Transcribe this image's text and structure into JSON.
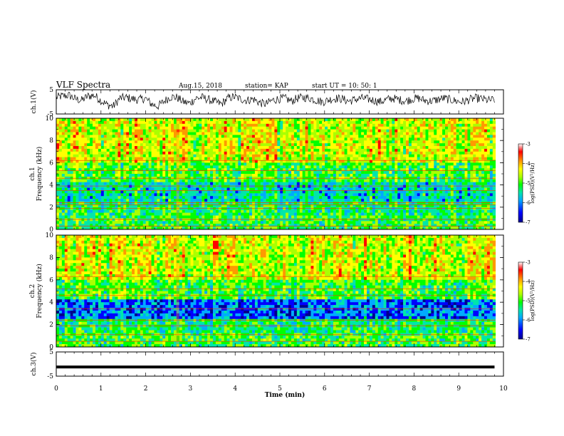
{
  "header": {
    "title": "VLF Spectra",
    "date": "Aug.15, 2018",
    "station": "station= KAP",
    "start": "start  UT  =    10: 50: 1"
  },
  "chart_data": [
    {
      "id": "ch1-waveform",
      "type": "line",
      "ylabel": "ch.1(V)",
      "ylim": [
        -5,
        5
      ],
      "y_ticks": [
        "5",
        "-5"
      ],
      "xlim": [
        0,
        10
      ],
      "series": [
        {
          "values": [
            0.6,
            0.8,
            0.9,
            0.4,
            0.2,
            0.8,
            0.9,
            0.2,
            -0.4,
            -0.6,
            0.5,
            0.6,
            0.4,
            0.3,
            0.5,
            -0.3,
            -0.6,
            0.1,
            0.7,
            0.6,
            0.0,
            -0.2,
            0.5,
            0.6,
            0.3,
            0.0,
            -0.3,
            0.5,
            0.7,
            0.4,
            0.2,
            0.4,
            -0.1,
            -0.3,
            0.2,
            0.4,
            0.5,
            0.1,
            0.5,
            0.6,
            0.5,
            0.2,
            0.0,
            0.3,
            0.5,
            0.4,
            0.1,
            0.3,
            0.5,
            0.4,
            0.2,
            0.0,
            0.3,
            0.5,
            0.3,
            0.1,
            0.4,
            0.5,
            0.2,
            0.1,
            0.3,
            0.5,
            0.3,
            0.1,
            0.0,
            0.3,
            0.5,
            0.4,
            0.2,
            0.3
          ]
        }
      ]
    },
    {
      "id": "ch1-spectrogram",
      "type": "heatmap",
      "ylabel": "ch.1\nFrequency  (kHz)",
      "ylim": [
        0,
        10
      ],
      "y_ticks": [
        "0",
        "2",
        "4",
        "6",
        "8",
        "10"
      ],
      "xlim": [
        0,
        10
      ],
      "colorbar": {
        "label": "log(PSD)(V²/Hz)",
        "range": [
          -7,
          -3
        ],
        "ticks": [
          "-3",
          "-4",
          "-5",
          "-6",
          "-7"
        ]
      }
    },
    {
      "id": "ch2-spectrogram",
      "type": "heatmap",
      "ylabel": "ch.2\nFrequency  (kHz)",
      "ylim": [
        0,
        10
      ],
      "y_ticks": [
        "0",
        "2",
        "4",
        "6",
        "8",
        "10"
      ],
      "xlim": [
        0,
        10
      ],
      "colorbar": {
        "label": "log(PSD)(V²/Hz)",
        "range": [
          -7,
          -3
        ],
        "ticks": [
          "-3",
          "-4",
          "-5",
          "-6",
          "-7"
        ]
      }
    },
    {
      "id": "ch3-waveform",
      "type": "line",
      "ylabel": "ch.3(V)",
      "ylim": [
        -5,
        5
      ],
      "y_ticks": [
        "5",
        "-5"
      ],
      "xlim": [
        0,
        10
      ],
      "series": [
        {
          "values": [
            -1.2,
            -1.2,
            -1.2,
            -1.2
          ]
        }
      ]
    }
  ],
  "xaxis": {
    "label": "Time  (min)",
    "range": [
      0,
      10
    ],
    "ticks": [
      "0",
      "1",
      "2",
      "3",
      "4",
      "5",
      "6",
      "7",
      "8",
      "9",
      "10"
    ]
  },
  "colors": {
    "colormap": [
      "#00008b",
      "#0000ff",
      "#00aaff",
      "#00e6aa",
      "#00ff00",
      "#aaff00",
      "#ffff00",
      "#ff9900",
      "#ff0000",
      "#ffffff"
    ],
    "waveform": "#000000"
  }
}
